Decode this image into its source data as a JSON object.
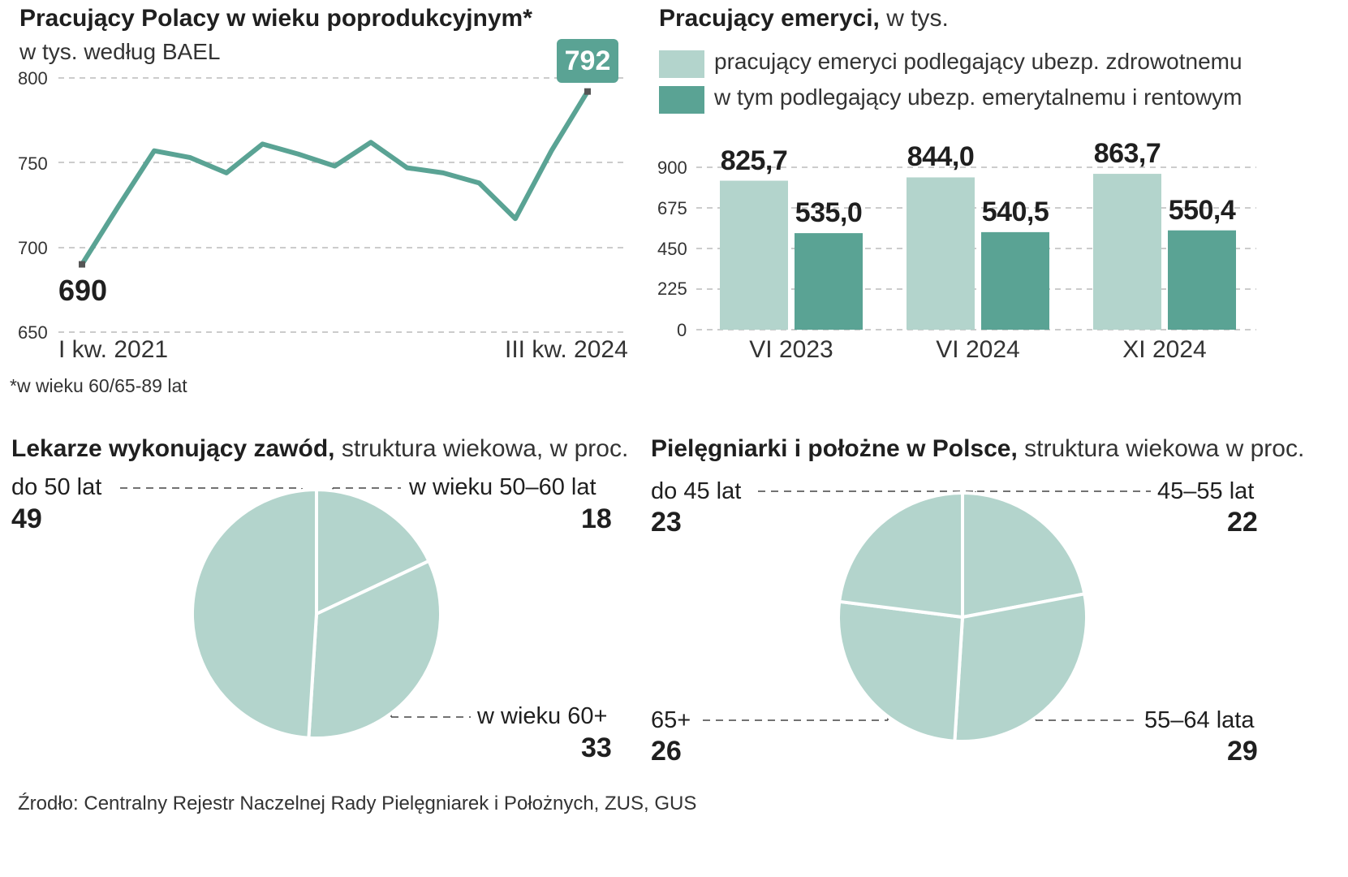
{
  "colors": {
    "light": "#b3d4cc",
    "dark": "#5aa394",
    "grid": "#bbbbbb",
    "text": "#1f1f1f"
  },
  "chart_data": [
    {
      "type": "line",
      "title": "Pracujący Polacy w wieku poprodukcyjnym*",
      "subtitle": "w tys. według BAEL",
      "x_start_label": "I kw. 2021",
      "x_end_label": "III kw. 2024",
      "yticks": [
        "800",
        "750",
        "700",
        "650"
      ],
      "ylim": [
        650,
        800
      ],
      "values": [
        690,
        724,
        757,
        753,
        744,
        761,
        755,
        748,
        762,
        747,
        744,
        738,
        717,
        757,
        792
      ],
      "first_label": "690",
      "last_label": "792",
      "footnote": "*w wieku 60/65-89 lat"
    },
    {
      "type": "bar",
      "title": "Pracujący emeryci,",
      "subtitle": "w tys.",
      "legend": [
        "pracujący emeryci podlegający ubezp. zdrowotnemu",
        "w tym podlegający  ubezp. emerytalnemu i rentowym"
      ],
      "categories": [
        "VI 2023",
        "VI 2024",
        "XI 2024"
      ],
      "yticks": [
        "900",
        "675",
        "450",
        "225",
        "0"
      ],
      "ylim": [
        0,
        900
      ],
      "series": [
        {
          "name": "pracujący emeryci podlegający ubezp. zdrowotnemu",
          "values": [
            825.7,
            844.0,
            863.7
          ],
          "labels": [
            "825,7",
            "844,0",
            "863,7"
          ]
        },
        {
          "name": "w tym podlegający  ubezp. emerytalnemu i rentowym",
          "values": [
            535.0,
            540.5,
            550.4
          ],
          "labels": [
            "535,0",
            "540,5",
            "550,4"
          ]
        }
      ]
    },
    {
      "type": "pie",
      "title": "Lekarze wykonujący zawód,",
      "subtitle": "struktura wiekowa, w proc.",
      "slices": [
        {
          "label": "w wieku 50–60 lat",
          "value": 18,
          "value_label": "18"
        },
        {
          "label": "w wieku 60+",
          "value": 33,
          "value_label": "33"
        },
        {
          "label": "do 50 lat",
          "value": 49,
          "value_label": "49"
        }
      ]
    },
    {
      "type": "pie",
      "title": "Pielęgniarki i położne w Polsce,",
      "subtitle": "struktura wiekowa w proc.",
      "slices": [
        {
          "label": "45–55 lat",
          "value": 22,
          "value_label": "22"
        },
        {
          "label": "55–64 lata",
          "value": 29,
          "value_label": "29"
        },
        {
          "label": "65+",
          "value": 26,
          "value_label": "26"
        },
        {
          "label": "do 45 lat",
          "value": 23,
          "value_label": "23"
        }
      ]
    }
  ],
  "source": "Źrodło: Centralny Rejestr Naczelnej Rady Pielęgniarek i Położnych, ZUS, GUS"
}
